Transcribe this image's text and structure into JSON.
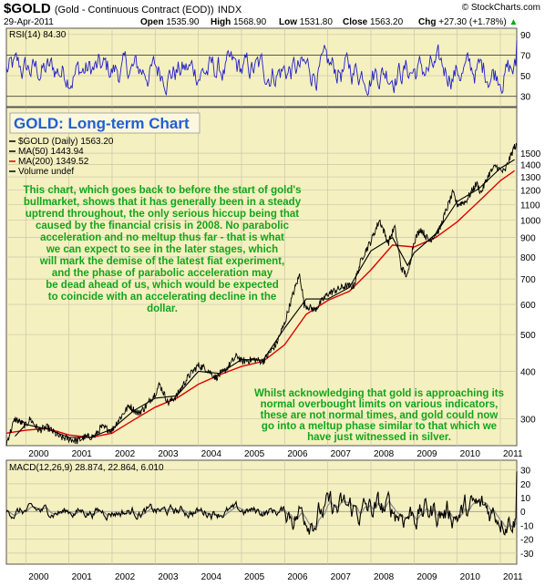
{
  "header": {
    "symbol": "$GOLD",
    "description": "(Gold - Continuous Contract (EOD))",
    "exchange": "INDX",
    "watermark": "© StockCharts.com",
    "date": "29-Apr-2011",
    "open_label": "Open",
    "open": "1535.90",
    "high_label": "High",
    "high": "1568.90",
    "low_label": "Low",
    "low": "1531.80",
    "close_label": "Close",
    "close": "1563.20",
    "chg_label": "Chg",
    "chg": "+27.30 (+1.78%)",
    "chg_arrow": "▲"
  },
  "colors": {
    "panel_bg": "#f5f0c0",
    "rsi_line": "#2020c8",
    "price_line": "#000000",
    "ma50": "#000000",
    "ma200": "#e00000",
    "annotation": "#12a61a",
    "title_box_text": "#1f5fd6",
    "macd_signal": "#909090",
    "macd_line": "#000000"
  },
  "rsi_panel": {
    "label": "RSI(14) 84.30",
    "ticks": [
      "90",
      "70",
      "50",
      "30"
    ]
  },
  "price_panel": {
    "title_box": "GOLD: Long-term Chart",
    "legend": [
      {
        "text": "$GOLD (Daily) 1563.20",
        "color": "#000000"
      },
      {
        "text": "MA(50) 1443.94",
        "color": "#000000"
      },
      {
        "text": "MA(200) 1349.52",
        "color": "#e00000"
      },
      {
        "text": "Volume undef",
        "color": "#000000"
      }
    ],
    "annotation_main": [
      "This chart, which goes back to before the start of gold's",
      "bullmarket, shows that it has generally been in a steady",
      "uptrend throughout, the only serious hiccup being that",
      "caused by the financial crisis in 2008. No parabolic",
      "acceleration and no meltup thus far - that is what",
      "we can expect to see in the later stages, which",
      "will mark the demise of the latest fiat experiment,",
      "and the phase of parabolic acceleration may",
      "be dead ahead of us, which would be expected",
      "to coincide with an accelerating decline in the",
      "dollar."
    ],
    "annotation_secondary": [
      "Whilst acknowledging that gold is approaching its",
      "normal overbought limits on various indicators,",
      "these are not normal times, and gold could now",
      "go into a meltup phase similar to that which we",
      "have just witnessed in silver."
    ],
    "ticks": [
      "1500",
      "1400",
      "1300",
      "1200",
      "1100",
      "1000",
      "900",
      "800",
      "700",
      "600",
      "500",
      "400",
      "300"
    ]
  },
  "macd_panel": {
    "label": "MACD(12,26,9) 28.874, 22.864, 6.010",
    "ticks": [
      "30",
      "20",
      "10",
      "0",
      "-10",
      "-20",
      "-30"
    ]
  },
  "x_axis": {
    "years": [
      "2000",
      "2001",
      "2002",
      "2003",
      "2004",
      "2005",
      "2006",
      "2007",
      "2008",
      "2009",
      "2010",
      "2011"
    ]
  },
  "chart_data": {
    "type": "line",
    "title": "GOLD: Long-term Chart",
    "scale": "log",
    "x_range": [
      "1999-07",
      "2011-04-29"
    ],
    "ylim": [
      255,
      1640
    ],
    "series": [
      {
        "name": "$GOLD (Daily)",
        "values": [
          [
            1999.55,
            258
          ],
          [
            1999.75,
            300
          ],
          [
            1999.85,
            295
          ],
          [
            2000.0,
            288
          ],
          [
            2000.1,
            300
          ],
          [
            2000.3,
            280
          ],
          [
            2000.5,
            285
          ],
          [
            2000.8,
            268
          ],
          [
            2001.0,
            266
          ],
          [
            2001.2,
            262
          ],
          [
            2001.35,
            268
          ],
          [
            2001.6,
            270
          ],
          [
            2001.75,
            285
          ],
          [
            2002.0,
            280
          ],
          [
            2002.15,
            298
          ],
          [
            2002.4,
            325
          ],
          [
            2002.6,
            310
          ],
          [
            2002.75,
            320
          ],
          [
            2003.0,
            350
          ],
          [
            2003.1,
            370
          ],
          [
            2003.3,
            330
          ],
          [
            2003.5,
            345
          ],
          [
            2003.75,
            385
          ],
          [
            2004.0,
            415
          ],
          [
            2004.2,
            405
          ],
          [
            2004.4,
            385
          ],
          [
            2004.6,
            400
          ],
          [
            2004.9,
            440
          ],
          [
            2005.0,
            425
          ],
          [
            2005.3,
            430
          ],
          [
            2005.5,
            425
          ],
          [
            2005.8,
            470
          ],
          [
            2006.0,
            535
          ],
          [
            2006.35,
            720
          ],
          [
            2006.45,
            600
          ],
          [
            2006.7,
            580
          ],
          [
            2007.0,
            640
          ],
          [
            2007.4,
            670
          ],
          [
            2007.6,
            670
          ],
          [
            2007.8,
            800
          ],
          [
            2008.0,
            880
          ],
          [
            2008.2,
            1000
          ],
          [
            2008.4,
            870
          ],
          [
            2008.55,
            960
          ],
          [
            2008.7,
            750
          ],
          [
            2008.85,
            710
          ],
          [
            2009.0,
            880
          ],
          [
            2009.15,
            950
          ],
          [
            2009.35,
            880
          ],
          [
            2009.6,
            950
          ],
          [
            2009.9,
            1180
          ],
          [
            2010.0,
            1100
          ],
          [
            2010.2,
            1120
          ],
          [
            2010.45,
            1250
          ],
          [
            2010.55,
            1180
          ],
          [
            2010.75,
            1330
          ],
          [
            2010.9,
            1390
          ],
          [
            2011.0,
            1350
          ],
          [
            2011.1,
            1340
          ],
          [
            2011.33,
            1563.2
          ]
        ]
      },
      {
        "name": "MA(50)",
        "values": [
          [
            1999.75,
            270
          ],
          [
            2000.0,
            290
          ],
          [
            2000.5,
            282
          ],
          [
            2001.0,
            268
          ],
          [
            2001.5,
            268
          ],
          [
            2002.0,
            282
          ],
          [
            2002.5,
            315
          ],
          [
            2003.0,
            340
          ],
          [
            2003.5,
            345
          ],
          [
            2004.0,
            400
          ],
          [
            2004.5,
            395
          ],
          [
            2005.0,
            430
          ],
          [
            2005.5,
            428
          ],
          [
            2006.0,
            520
          ],
          [
            2006.5,
            620
          ],
          [
            2007.0,
            620
          ],
          [
            2007.5,
            665
          ],
          [
            2008.0,
            830
          ],
          [
            2008.5,
            900
          ],
          [
            2008.85,
            760
          ],
          [
            2009.0,
            820
          ],
          [
            2009.5,
            920
          ],
          [
            2010.0,
            1120
          ],
          [
            2010.5,
            1210
          ],
          [
            2011.0,
            1370
          ],
          [
            2011.33,
            1443.94
          ]
        ]
      },
      {
        "name": "MA(200)",
        "values": [
          [
            1999.55,
            275
          ],
          [
            2000.0,
            280
          ],
          [
            2000.5,
            283
          ],
          [
            2001.0,
            272
          ],
          [
            2001.5,
            268
          ],
          [
            2002.0,
            275
          ],
          [
            2002.5,
            298
          ],
          [
            2003.0,
            322
          ],
          [
            2003.5,
            340
          ],
          [
            2004.0,
            370
          ],
          [
            2004.5,
            392
          ],
          [
            2005.0,
            412
          ],
          [
            2005.5,
            425
          ],
          [
            2006.0,
            470
          ],
          [
            2006.5,
            565
          ],
          [
            2007.0,
            615
          ],
          [
            2007.5,
            650
          ],
          [
            2008.0,
            740
          ],
          [
            2008.5,
            860
          ],
          [
            2009.0,
            850
          ],
          [
            2009.5,
            900
          ],
          [
            2010.0,
            990
          ],
          [
            2010.5,
            1120
          ],
          [
            2011.0,
            1270
          ],
          [
            2011.33,
            1349.52
          ]
        ]
      }
    ],
    "rsi": {
      "name": "RSI(14)",
      "last": 84.3,
      "ylim": [
        20,
        96
      ]
    },
    "macd": {
      "name": "MACD(12,26,9)",
      "macd": 28.874,
      "signal": 22.864,
      "histogram": 6.01,
      "ylim": [
        -38,
        37
      ]
    }
  }
}
